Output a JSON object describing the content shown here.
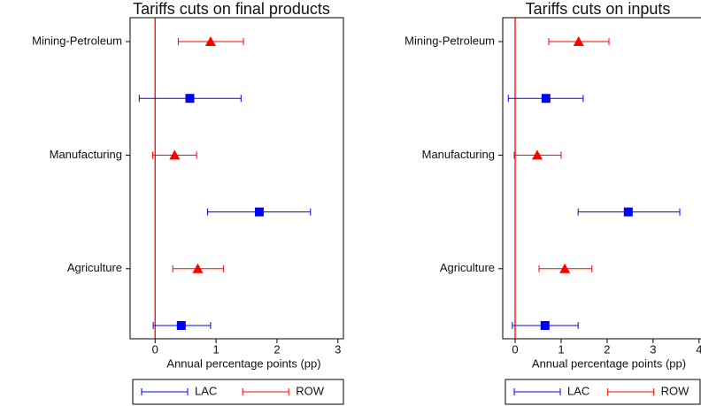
{
  "chart_data": [
    {
      "type": "errorbar",
      "title": "Tariffs cuts on final products",
      "xlabel": "Annual percentage points (pp)",
      "categories": [
        "Mining-Petroleum",
        "Manufacturing",
        "Agriculture"
      ],
      "xlim": [
        -0.41,
        3.09
      ],
      "xticks": [
        0,
        1,
        2,
        3
      ],
      "refline": 0,
      "refline_color": "#ff0000",
      "series": [
        {
          "name": "LAC",
          "color": "#0000ff",
          "marker": "square",
          "values": [
            0.57,
            1.71,
            0.43
          ],
          "lower": [
            -0.26,
            0.86,
            -0.03
          ],
          "upper": [
            1.41,
            2.55,
            0.91
          ]
        },
        {
          "name": "ROW",
          "color": "#ff0000",
          "marker": "triangle",
          "values": [
            0.91,
            0.32,
            0.7
          ],
          "lower": [
            0.38,
            -0.04,
            0.29
          ],
          "upper": [
            1.45,
            0.68,
            1.12
          ]
        }
      ]
    },
    {
      "type": "errorbar",
      "title": "Tariffs cuts on inputs",
      "xlabel": "Annual percentage points (pp)",
      "categories": [
        "Mining-Petroleum",
        "Manufacturing",
        "Agriculture"
      ],
      "xlim": [
        -0.27,
        4.1
      ],
      "xticks": [
        0,
        1,
        2,
        3,
        4
      ],
      "refline": 0,
      "refline_color": "#ff0000",
      "series": [
        {
          "name": "LAC",
          "color": "#0000ff",
          "marker": "square",
          "values": [
            0.67,
            2.46,
            0.65
          ],
          "lower": [
            -0.15,
            1.37,
            -0.06
          ],
          "upper": [
            1.48,
            3.58,
            1.37
          ]
        },
        {
          "name": "ROW",
          "color": "#ff0000",
          "marker": "triangle",
          "values": [
            1.38,
            0.48,
            1.08
          ],
          "lower": [
            0.73,
            -0.02,
            0.52
          ],
          "upper": [
            2.04,
            1.0,
            1.67
          ]
        }
      ]
    }
  ]
}
